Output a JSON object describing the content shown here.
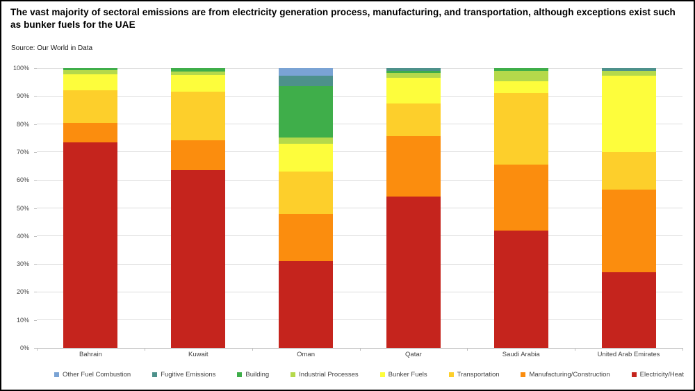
{
  "chart_data": {
    "type": "bar",
    "subtype": "100pct-stacked-vertical",
    "title": "The vast majority of sectoral emissions are from electricity generation process, manufacturing, and transportation, although exceptions exist such as bunker fuels for the UAE",
    "source": "Source: Our World in Data",
    "xlabel": "",
    "ylabel": "",
    "ylim": [
      0,
      100
    ],
    "grid": true,
    "legend_position": "bottom",
    "yticks": [
      "0%",
      "10%",
      "20%",
      "30%",
      "40%",
      "50%",
      "60%",
      "70%",
      "80%",
      "90%",
      "100%"
    ],
    "categories": [
      "Bahrain",
      "Kuwait",
      "Oman",
      "Qatar",
      "Saudi Arabia",
      "United Arab Emirates"
    ],
    "series": [
      {
        "name": "Other Fuel Combustion",
        "color": "#7aa3d4",
        "values": [
          0,
          0,
          2.8,
          0,
          0,
          0
        ]
      },
      {
        "name": "Fugitive Emissions",
        "color": "#4d918b",
        "values": [
          0,
          0,
          3.6,
          1.0,
          0,
          1.0
        ]
      },
      {
        "name": "Building",
        "color": "#3fae4a",
        "values": [
          0.8,
          1.3,
          18.3,
          0.6,
          1.0,
          0
        ]
      },
      {
        "name": "Industrial Processes",
        "color": "#b5d94b",
        "values": [
          1.5,
          1.2,
          2.3,
          1.8,
          3.8,
          1.6
        ]
      },
      {
        "name": "Bunker Fuels",
        "color": "#fdfd3c",
        "values": [
          5.7,
          6.0,
          10.0,
          9.3,
          4.2,
          27.4
        ]
      },
      {
        "name": "Transportation",
        "color": "#fdcf2b",
        "values": [
          11.5,
          17.3,
          15.0,
          11.6,
          25.6,
          13.5
        ]
      },
      {
        "name": "Manufacturing/Construction",
        "color": "#fb8d0e",
        "values": [
          7.0,
          10.7,
          17.0,
          21.7,
          23.4,
          29.5
        ]
      },
      {
        "name": "Electricity/Heat",
        "color": "#c5241d",
        "values": [
          73.5,
          63.5,
          31.0,
          54.0,
          42.0,
          27.0
        ]
      }
    ],
    "colors": {
      "gridline": "#dcdcdc",
      "axis_line": "#bfbfbf",
      "tick_text": "#404040",
      "title_text": "#000000"
    }
  }
}
